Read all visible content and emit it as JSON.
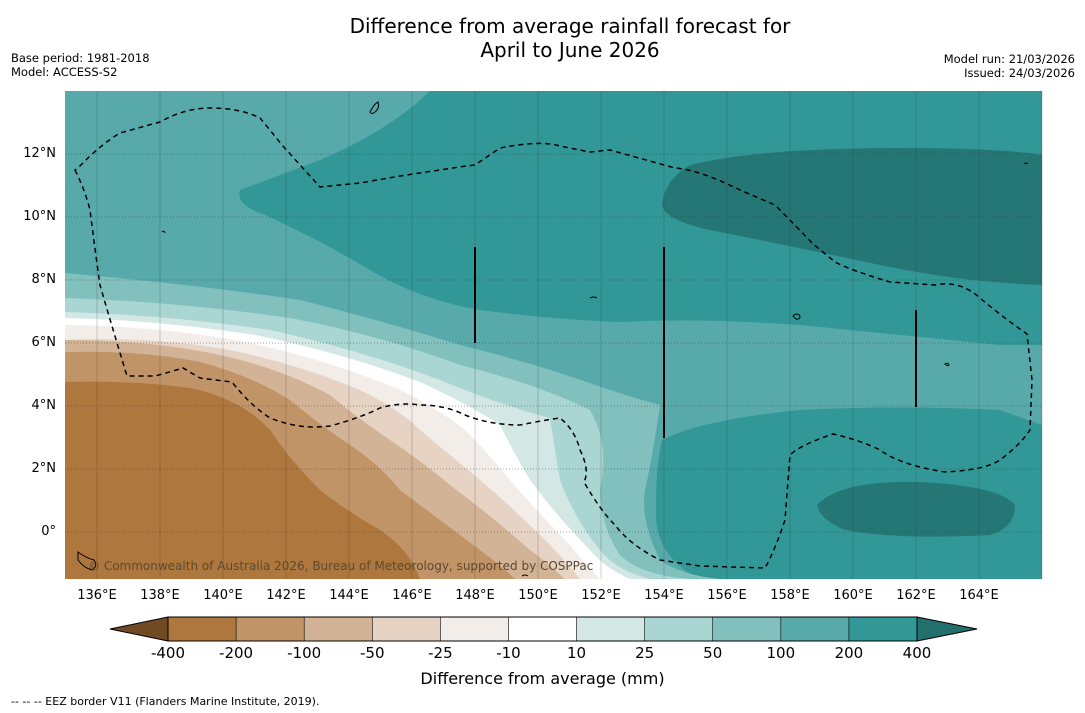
{
  "title": {
    "line1": "Difference from average rainfall forecast for",
    "line2": "April to June 2026"
  },
  "meta": {
    "base_period": "Base period: 1981-2018",
    "model": "Model: ACCESS-S2",
    "model_run": "Model run: 21/03/2026",
    "issued": "Issued: 24/03/2026"
  },
  "axes": {
    "lat_labels": [
      "12°N",
      "10°N",
      "8°N",
      "6°N",
      "4°N",
      "2°N",
      "0°"
    ],
    "lon_labels": [
      "136°E",
      "138°E",
      "140°E",
      "142°E",
      "144°E",
      "146°E",
      "148°E",
      "150°E",
      "152°E",
      "154°E",
      "156°E",
      "158°E",
      "160°E",
      "162°E",
      "164°E"
    ]
  },
  "colorbar": {
    "title": "Difference from average (mm)",
    "ticks": [
      "-400",
      "-200",
      "-100",
      "-50",
      "-25",
      "-10",
      "10",
      "25",
      "50",
      "100",
      "200",
      "400"
    ],
    "colors": [
      "#6f4a22",
      "#ae773e",
      "#c19468",
      "#d3b395",
      "#e6d3c3",
      "#f2ede9",
      "#ffffff",
      "#d3e8e5",
      "#a9d5d2",
      "#82c0bd",
      "#58aaaa",
      "#329897",
      "#226f6e"
    ]
  },
  "copyright": "© Commonwealth of Australia 2026, Bureau of Meteorology, supported by COSPPac",
  "footer": "--  --  -- EEZ border V11 (Flanders Marine Institute, 2019)."
}
